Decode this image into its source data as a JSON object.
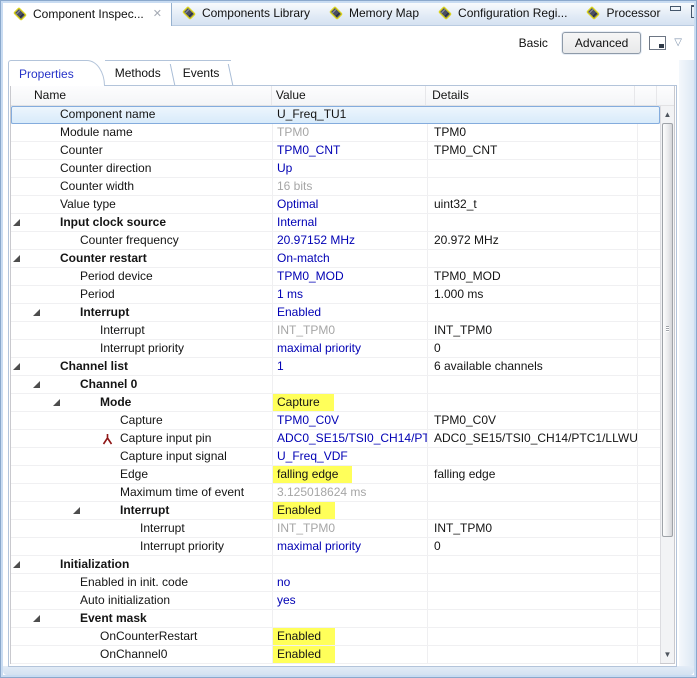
{
  "editor_tabs": {
    "tabs": [
      {
        "label": "Component Inspec...",
        "active": true,
        "closable": true
      },
      {
        "label": "Components Library",
        "active": false,
        "closable": false
      },
      {
        "label": "Memory Map",
        "active": false,
        "closable": false
      },
      {
        "label": "Configuration Regi...",
        "active": false,
        "closable": false
      },
      {
        "label": "Processor",
        "active": false,
        "closable": false
      }
    ],
    "close_glyph": "✕"
  },
  "window_controls": {
    "minimize": "minimize",
    "maximize": "maximize"
  },
  "toolbar": {
    "basic_label": "Basic",
    "advanced_label": "Advanced",
    "menu_chevron": "▽"
  },
  "view_tabs": [
    {
      "label": "Properties",
      "active": true
    },
    {
      "label": "Methods",
      "active": false
    },
    {
      "label": "Events",
      "active": false
    }
  ],
  "icons": {
    "tab_component": "diagonal-component-chip",
    "close": "✕",
    "expander": "◢",
    "pin_share": "⅄",
    "dropdown": "▽",
    "layout_toggle": "window-with-corner-square"
  },
  "colors": {
    "value_blue": "#0000b4",
    "muted_gray": "#a6a6a6",
    "highlight_yellow": "#ffff5a",
    "selection_border": "#84acdd",
    "active_tab_text": "#2633c8"
  },
  "table": {
    "columns": [
      "Name",
      "Value",
      "Details"
    ],
    "rows": [
      {
        "level": 0,
        "bold": false,
        "expander": false,
        "selected": true,
        "name": "Component name",
        "value": "U_Freq_TU1",
        "value_style": "plain",
        "details": ""
      },
      {
        "level": 0,
        "bold": false,
        "expander": false,
        "name": "Module name",
        "value": "TPM0",
        "value_style": "gray",
        "details": "TPM0"
      },
      {
        "level": 0,
        "bold": false,
        "expander": false,
        "name": "Counter",
        "value": "TPM0_CNT",
        "value_style": "blue",
        "details": "TPM0_CNT"
      },
      {
        "level": 0,
        "bold": false,
        "expander": false,
        "name": "Counter direction",
        "value": "Up",
        "value_style": "blue",
        "details": ""
      },
      {
        "level": 0,
        "bold": false,
        "expander": false,
        "name": "Counter width",
        "value": "16 bits",
        "value_style": "gray",
        "details": ""
      },
      {
        "level": 0,
        "bold": false,
        "expander": false,
        "name": "Value type",
        "value": "Optimal",
        "value_style": "blue",
        "details": "uint32_t"
      },
      {
        "level": 0,
        "bold": true,
        "expander": true,
        "name": "Input clock source",
        "value": "Internal",
        "value_style": "blue",
        "details": ""
      },
      {
        "level": 1,
        "bold": false,
        "expander": false,
        "name": "Counter frequency",
        "value": "20.97152 MHz",
        "value_style": "blue",
        "details": "20.972 MHz"
      },
      {
        "level": 0,
        "bold": true,
        "expander": true,
        "name": "Counter restart",
        "value": "On-match",
        "value_style": "blue",
        "details": ""
      },
      {
        "level": 1,
        "bold": false,
        "expander": false,
        "name": "Period device",
        "value": "TPM0_MOD",
        "value_style": "blue",
        "details": "TPM0_MOD"
      },
      {
        "level": 1,
        "bold": false,
        "expander": false,
        "name": "Period",
        "value": "1 ms",
        "value_style": "blue",
        "details": "1.000 ms"
      },
      {
        "level": 1,
        "bold": true,
        "expander": true,
        "name": "Interrupt",
        "value": "Enabled",
        "value_style": "blue",
        "details": ""
      },
      {
        "level": 2,
        "bold": false,
        "expander": false,
        "name": "Interrupt",
        "value": "INT_TPM0",
        "value_style": "gray",
        "details": "INT_TPM0"
      },
      {
        "level": 2,
        "bold": false,
        "expander": false,
        "name": "Interrupt priority",
        "value": "maximal priority",
        "value_style": "blue",
        "details": "0"
      },
      {
        "level": 0,
        "bold": true,
        "expander": true,
        "name": "Channel list",
        "value": "1",
        "value_style": "blue",
        "details": "6 available channels"
      },
      {
        "level": 1,
        "bold": true,
        "expander": true,
        "name": "Channel 0",
        "value": "",
        "value_style": "plain",
        "details": ""
      },
      {
        "level": 2,
        "bold": true,
        "expander": true,
        "name": "Mode",
        "value": "Capture",
        "value_style": "highlight",
        "details": ""
      },
      {
        "level": 3,
        "bold": false,
        "expander": false,
        "name": "Capture",
        "value": "TPM0_C0V",
        "value_style": "blue",
        "details": "TPM0_C0V"
      },
      {
        "level": 3,
        "bold": false,
        "expander": false,
        "icon": "pin_share",
        "name": "Capture input pin",
        "value": "ADC0_SE15/TSI0_CH14/PT...",
        "value_style": "blue",
        "details": "ADC0_SE15/TSI0_CH14/PTC1/LLWU..."
      },
      {
        "level": 3,
        "bold": false,
        "expander": false,
        "name": "Capture input signal",
        "value": "U_Freq_VDF",
        "value_style": "blue",
        "details": ""
      },
      {
        "level": 3,
        "bold": false,
        "expander": false,
        "name": "Edge",
        "value": "falling edge",
        "value_style": "highlight",
        "details": "falling edge"
      },
      {
        "level": 3,
        "bold": false,
        "expander": false,
        "name": "Maximum time of event",
        "value": "3.125018624 ms",
        "value_style": "gray",
        "details": ""
      },
      {
        "level": 3,
        "bold": true,
        "expander": true,
        "name": "Interrupt",
        "value": "Enabled",
        "value_style": "highlight",
        "details": ""
      },
      {
        "level": 4,
        "bold": false,
        "expander": false,
        "name": "Interrupt",
        "value": "INT_TPM0",
        "value_style": "gray",
        "details": "INT_TPM0"
      },
      {
        "level": 4,
        "bold": false,
        "expander": false,
        "name": "Interrupt priority",
        "value": "maximal priority",
        "value_style": "blue",
        "details": "0"
      },
      {
        "level": 0,
        "bold": true,
        "expander": true,
        "name": "Initialization",
        "value": "",
        "value_style": "plain",
        "details": ""
      },
      {
        "level": 1,
        "bold": false,
        "expander": false,
        "name": "Enabled in init. code",
        "value": "no",
        "value_style": "blue",
        "details": ""
      },
      {
        "level": 1,
        "bold": false,
        "expander": false,
        "name": "Auto initialization",
        "value": "yes",
        "value_style": "blue",
        "details": ""
      },
      {
        "level": 1,
        "bold": true,
        "expander": true,
        "name": "Event mask",
        "value": "",
        "value_style": "plain",
        "details": ""
      },
      {
        "level": 2,
        "bold": false,
        "expander": false,
        "name": "OnCounterRestart",
        "value": "Enabled",
        "value_style": "highlight",
        "details": ""
      },
      {
        "level": 2,
        "bold": false,
        "expander": false,
        "name": "OnChannel0",
        "value": "Enabled",
        "value_style": "highlight",
        "details": ""
      }
    ]
  }
}
